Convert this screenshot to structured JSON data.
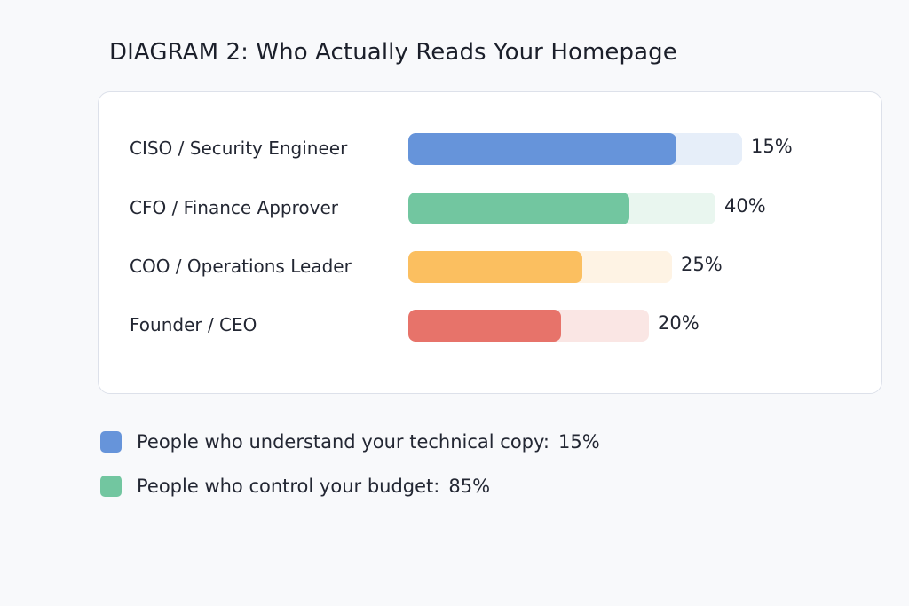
{
  "chart_data": {
    "type": "bar",
    "orientation": "horizontal",
    "title": "DIAGRAM 2: Who Actually Reads Your Homepage",
    "categories": [
      "CISO / Security Engineer",
      "CFO / Finance Approver",
      "COO / Operations Leader",
      "Founder / CEO"
    ],
    "values": [
      15,
      40,
      25,
      20
    ],
    "value_labels": [
      "15%",
      "40%",
      "25%",
      "20%"
    ],
    "colors": [
      "#6694da",
      "#72c6a0",
      "#fbbf60",
      "#e7736a"
    ],
    "track_colors": [
      "#e6eef9",
      "#e9f6ef",
      "#fef3e4",
      "#fae6e4"
    ],
    "legend": [
      {
        "text": "People who understand your technical copy:",
        "value": "15%",
        "color": "#6694da"
      },
      {
        "text": "People who control your budget:",
        "value": "85%",
        "color": "#72c6a0"
      }
    ]
  }
}
